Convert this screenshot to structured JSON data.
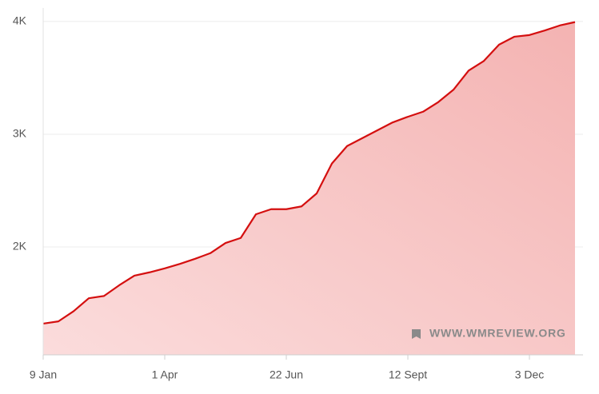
{
  "chart_data": {
    "type": "area",
    "categories": [
      "9 Jan",
      null,
      null,
      null,
      null,
      null,
      null,
      null,
      "1 Apr",
      null,
      null,
      null,
      null,
      null,
      null,
      null,
      "22 Jun",
      null,
      null,
      null,
      null,
      null,
      null,
      null,
      "12 Sept",
      null,
      null,
      null,
      null,
      null,
      null,
      null,
      "3 Dec",
      null,
      null,
      null
    ],
    "series": [
      {
        "color": "#d40f0f",
        "values": [
          1320,
          1340,
          1430,
          1545,
          1565,
          1660,
          1745,
          1775,
          1810,
          1850,
          1895,
          1945,
          2035,
          2080,
          2290,
          2335,
          2335,
          2360,
          2475,
          2740,
          2895,
          2965,
          3035,
          3105,
          3155,
          3200,
          3285,
          3395,
          3565,
          3650,
          3795,
          3865,
          3880,
          3920,
          3965,
          3995
        ]
      }
    ],
    "ylim": [
      1043,
      4120
    ],
    "yticks": [
      {
        "value": 2000,
        "label": "2K"
      },
      {
        "value": 3000,
        "label": "3K"
      },
      {
        "value": 4000,
        "label": "4K"
      }
    ],
    "grid": true,
    "watermark": "WWW.WMREVIEW.ORG"
  }
}
